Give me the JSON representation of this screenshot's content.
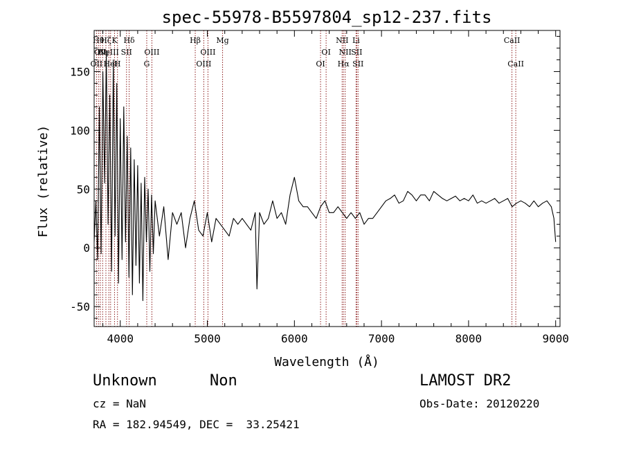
{
  "chart_data": {
    "type": "line",
    "title": "spec-55978-B5597804_sp12-237.fits",
    "xlabel": "Wavelength (Å)",
    "ylabel": "Flux (relative)",
    "xlim": [
      3700,
      9050
    ],
    "ylim": [
      -67,
      185
    ],
    "xticks": [
      4000,
      5000,
      6000,
      7000,
      8000,
      9000
    ],
    "yticks": [
      -50,
      0,
      50,
      100,
      150
    ],
    "grid": false,
    "series": [
      {
        "line_color": "#000000",
        "x": [
          3700,
          3720,
          3740,
          3760,
          3780,
          3800,
          3820,
          3840,
          3860,
          3880,
          3900,
          3920,
          3940,
          3960,
          3980,
          4000,
          4020,
          4040,
          4060,
          4080,
          4100,
          4120,
          4140,
          4160,
          4180,
          4200,
          4220,
          4240,
          4260,
          4280,
          4300,
          4320,
          4340,
          4360,
          4380,
          4400,
          4450,
          4500,
          4550,
          4600,
          4650,
          4700,
          4750,
          4800,
          4850,
          4900,
          4950,
          5000,
          5050,
          5100,
          5150,
          5200,
          5250,
          5300,
          5350,
          5400,
          5450,
          5500,
          5550,
          5570,
          5600,
          5650,
          5700,
          5750,
          5800,
          5850,
          5900,
          5950,
          6000,
          6050,
          6100,
          6150,
          6200,
          6250,
          6300,
          6350,
          6400,
          6450,
          6500,
          6550,
          6600,
          6650,
          6700,
          6750,
          6800,
          6850,
          6900,
          6950,
          7000,
          7050,
          7100,
          7150,
          7200,
          7250,
          7300,
          7350,
          7400,
          7450,
          7500,
          7550,
          7600,
          7650,
          7700,
          7750,
          7800,
          7850,
          7900,
          7950,
          8000,
          8050,
          8100,
          8150,
          8200,
          8250,
          8300,
          8350,
          8400,
          8450,
          8500,
          8550,
          8600,
          8650,
          8700,
          8750,
          8800,
          8850,
          8900,
          8950,
          8980,
          9000
        ],
        "values": [
          5,
          40,
          -10,
          120,
          -5,
          150,
          55,
          165,
          20,
          130,
          -20,
          160,
          10,
          140,
          -30,
          110,
          -10,
          120,
          5,
          95,
          -25,
          85,
          -40,
          75,
          -15,
          70,
          -30,
          55,
          -45,
          60,
          5,
          50,
          -20,
          45,
          -5,
          40,
          10,
          35,
          -10,
          30,
          20,
          30,
          0,
          25,
          40,
          15,
          10,
          30,
          5,
          25,
          20,
          15,
          10,
          25,
          20,
          25,
          20,
          15,
          30,
          -35,
          30,
          20,
          25,
          40,
          25,
          30,
          20,
          45,
          60,
          40,
          35,
          35,
          30,
          25,
          35,
          40,
          30,
          30,
          35,
          30,
          25,
          30,
          25,
          30,
          20,
          25,
          25,
          30,
          35,
          40,
          42,
          45,
          38,
          40,
          48,
          45,
          40,
          45,
          45,
          40,
          48,
          45,
          42,
          40,
          42,
          44,
          40,
          42,
          40,
          45,
          38,
          40,
          38,
          40,
          42,
          38,
          40,
          42,
          35,
          38,
          40,
          38,
          35,
          40,
          35,
          38,
          40,
          35,
          25,
          5
        ]
      }
    ],
    "lines": [
      {
        "x": 3727,
        "label": "OII",
        "row": 3
      },
      {
        "x": 3750,
        "label": "Hθ",
        "row": 1
      },
      {
        "x": 3771,
        "label": "OII",
        "row": 2
      },
      {
        "x": 3798,
        "label": "Hη",
        "row": 2
      },
      {
        "x": 3835,
        "label": "Hζ",
        "row": 1
      },
      {
        "x": 3869,
        "label": "NeIII",
        "row": 2
      },
      {
        "x": 3889,
        "label": "HeI",
        "row": 3
      },
      {
        "x": 3934,
        "label": "K",
        "row": 1
      },
      {
        "x": 3968,
        "label": "H",
        "row": 3
      },
      {
        "x": 4072,
        "label": "SII",
        "row": 2
      },
      {
        "x": 4102,
        "label": "Hδ",
        "row": 1
      },
      {
        "x": 4304,
        "label": "G",
        "row": 3
      },
      {
        "x": 4363,
        "label": "OIII",
        "row": 2
      },
      {
        "x": 4861,
        "label": "Hβ",
        "row": 1
      },
      {
        "x": 4959,
        "label": "OIII",
        "row": 3
      },
      {
        "x": 5007,
        "label": "OIII",
        "row": 2
      },
      {
        "x": 5175,
        "label": "Mg",
        "row": 1
      },
      {
        "x": 6300,
        "label": "OI",
        "row": 3
      },
      {
        "x": 6364,
        "label": "OI",
        "row": 2
      },
      {
        "x": 6548,
        "label": "NII",
        "row": 1
      },
      {
        "x": 6563,
        "label": "Hα",
        "row": 3
      },
      {
        "x": 6583,
        "label": "NII",
        "row": 2
      },
      {
        "x": 6708,
        "label": "Li",
        "row": 1
      },
      {
        "x": 6716,
        "label": "SII",
        "row": 2
      },
      {
        "x": 6731,
        "label": "SII",
        "row": 3
      },
      {
        "x": 8498,
        "label": "CaII",
        "row": 1
      },
      {
        "x": 8542,
        "label": "CaII",
        "row": 3
      }
    ]
  },
  "info": {
    "class_label": "Unknown",
    "subclass_label": "Non",
    "survey_label": "LAMOST DR2",
    "cz_label": "cz = NaN",
    "obs_date_label": "Obs-Date: 20120220",
    "coords_label": "RA = 182.94549, DEC =  33.25421"
  }
}
